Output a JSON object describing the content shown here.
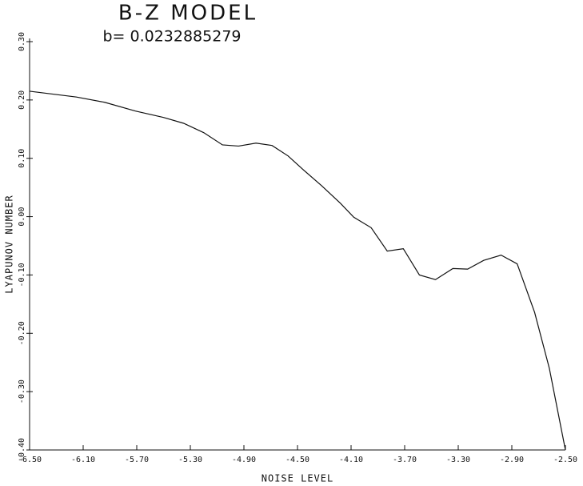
{
  "chart_data": {
    "type": "line",
    "title": "B-Z MODEL",
    "subtitle": "b= 0.0232885279",
    "x_label": "NOISE LEVEL",
    "y_label": "LYAPUNOV NUMBER",
    "x": [
      -6.5,
      -6.15,
      -5.94,
      -5.71,
      -5.5,
      -5.35,
      -5.2,
      -5.06,
      -4.94,
      -4.81,
      -4.69,
      -4.57,
      -4.45,
      -4.32,
      -4.18,
      -4.08,
      -3.95,
      -3.83,
      -3.71,
      -3.59,
      -3.47,
      -3.34,
      -3.23,
      -3.11,
      -2.98,
      -2.86,
      -2.73,
      -2.62,
      -2.5
    ],
    "series": [
      {
        "name": "Lyapunov number",
        "color": "#111111",
        "values": [
          0.215,
          0.205,
          0.196,
          0.181,
          0.17,
          0.16,
          0.144,
          0.123,
          0.121,
          0.126,
          0.122,
          0.104,
          0.079,
          0.053,
          0.023,
          -0.001,
          -0.019,
          -0.059,
          -0.055,
          -0.1,
          -0.108,
          -0.089,
          -0.09,
          -0.075,
          -0.066,
          -0.081,
          -0.164,
          -0.26,
          -0.4
        ]
      }
    ],
    "xlim": [
      -6.5,
      -2.5
    ],
    "xticks": [
      {
        "value": -6.5,
        "label": "-6.50"
      },
      {
        "value": -6.1,
        "label": "-6.10"
      },
      {
        "value": -5.7,
        "label": "-5.70"
      },
      {
        "value": -5.3,
        "label": "-5.30"
      },
      {
        "value": -4.9,
        "label": "-4.90"
      },
      {
        "value": -4.5,
        "label": "-4.50"
      },
      {
        "value": -4.1,
        "label": "-4.10"
      },
      {
        "value": -3.7,
        "label": "-3.70"
      },
      {
        "value": -3.3,
        "label": "-3.30"
      },
      {
        "value": -2.9,
        "label": "-2.90"
      },
      {
        "value": -2.5,
        "label": "-2.50"
      }
    ],
    "ylim": [
      -0.4,
      0.3
    ],
    "yticks": [
      {
        "value": -0.4,
        "label": "-0.40"
      },
      {
        "value": -0.3,
        "label": "-0.30"
      },
      {
        "value": -0.2,
        "label": "-0.20"
      },
      {
        "value": -0.1,
        "label": "-0.10"
      },
      {
        "value": 0,
        "label": "0.00"
      },
      {
        "value": 0.1,
        "label": "0.10"
      },
      {
        "value": 0.2,
        "label": "0.20"
      },
      {
        "value": 0.3,
        "label": "0.30"
      }
    ],
    "grid": false
  }
}
